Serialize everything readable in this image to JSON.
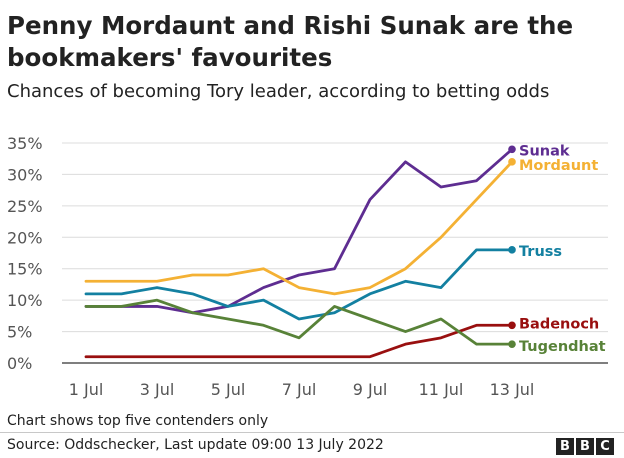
{
  "header": {
    "title": "Penny Mordaunt and Rishi Sunak are the bookmakers' favourites",
    "subtitle": "Chances of becoming Tory leader, according to betting odds"
  },
  "footer": {
    "note": "Chart shows top five contenders only",
    "source": "Source: Oddschecker, Last update 09:00 13 July 2022",
    "logo_letters": [
      "B",
      "B",
      "C"
    ]
  },
  "chart_data": {
    "type": "line",
    "title": "Penny Mordaunt and Rishi Sunak are the bookmakers' favourites",
    "subtitle": "Chances of becoming Tory leader, according to betting odds",
    "xlabel": "",
    "ylabel": "",
    "x": [
      "1 Jul",
      "2 Jul",
      "3 Jul",
      "4 Jul",
      "5 Jul",
      "6 Jul",
      "7 Jul",
      "8 Jul",
      "9 Jul",
      "10 Jul",
      "11 Jul",
      "12 Jul",
      "13 Jul"
    ],
    "x_ticks": [
      "1 Jul",
      "3 Jul",
      "5 Jul",
      "7 Jul",
      "9 Jul",
      "11 Jul",
      "13 Jul"
    ],
    "y_ticks": [
      "0%",
      "5%",
      "10%",
      "15%",
      "20%",
      "25%",
      "30%",
      "35%"
    ],
    "ylim": [
      0,
      35
    ],
    "grid": "horizontal",
    "legend": "direct labels at line ends",
    "series": [
      {
        "name": "Sunak",
        "color": "#5e2d91",
        "x": [
          1,
          2,
          3,
          4,
          5,
          6,
          7,
          8,
          9,
          10,
          11,
          12,
          13
        ],
        "values": [
          9,
          9,
          9,
          8,
          9,
          12,
          14,
          15,
          26,
          32,
          28,
          29,
          34
        ]
      },
      {
        "name": "Mordaunt",
        "color": "#f4b134",
        "x": [
          1,
          2,
          3,
          4,
          5,
          6,
          7,
          8,
          9,
          10,
          11,
          12,
          13
        ],
        "values": [
          13,
          13,
          13,
          14,
          14,
          15,
          12,
          11,
          12,
          15,
          20,
          26,
          32
        ]
      },
      {
        "name": "Truss",
        "color": "#1380a1",
        "x": [
          1,
          2,
          3,
          4,
          5,
          6,
          7,
          8,
          9,
          10,
          11,
          12,
          13
        ],
        "values": [
          11,
          11,
          12,
          11,
          9,
          10,
          7,
          8,
          11,
          13,
          12,
          18,
          18
        ]
      },
      {
        "name": "Badenoch",
        "color": "#990f0f",
        "x": [
          1,
          2,
          3,
          4,
          5,
          6,
          7,
          8,
          8.5,
          9,
          10,
          11,
          12,
          13
        ],
        "values": [
          1,
          1,
          1,
          1,
          1,
          1,
          1,
          1,
          1,
          1,
          3,
          4,
          6,
          6
        ]
      },
      {
        "name": "Tugendhat",
        "color": "#588238",
        "x": [
          1,
          2,
          3,
          4,
          5,
          6,
          7,
          8,
          9,
          10,
          11,
          12,
          13
        ],
        "values": [
          9,
          9,
          10,
          8,
          7,
          6,
          4,
          9,
          7,
          5,
          7,
          3,
          3
        ]
      }
    ]
  }
}
